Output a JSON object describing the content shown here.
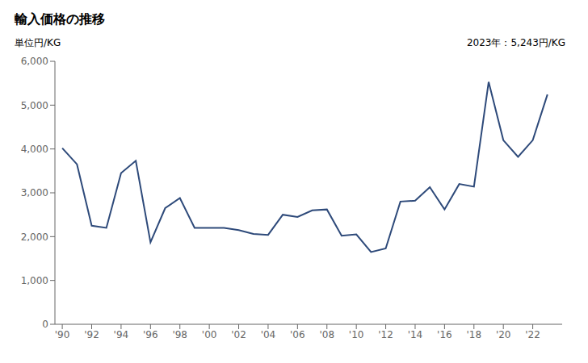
{
  "chart_data": {
    "type": "line",
    "title": "輸入価格の推移",
    "y_label": "単位円/KG",
    "annotation": "2023年：5,243円/KG",
    "x": [
      1990,
      1991,
      1992,
      1993,
      1994,
      1995,
      1996,
      1997,
      1998,
      1999,
      2000,
      2001,
      2002,
      2003,
      2004,
      2005,
      2006,
      2007,
      2008,
      2009,
      2010,
      2011,
      2012,
      2013,
      2014,
      2015,
      2016,
      2017,
      2018,
      2019,
      2020,
      2021,
      2022,
      2023
    ],
    "values": [
      4020,
      3650,
      2250,
      2200,
      3450,
      3730,
      1870,
      2650,
      2880,
      2200,
      2200,
      2200,
      2150,
      2060,
      2040,
      2500,
      2450,
      2600,
      2620,
      2020,
      2050,
      1650,
      1730,
      2800,
      2820,
      3130,
      2620,
      3200,
      3140,
      5530,
      4200,
      3820,
      4200,
      5243
    ],
    "color": "#2e4a7a",
    "xlim": [
      1989.5,
      2024.0
    ],
    "xticks": [
      {
        "value": 1990,
        "label": "'90"
      },
      {
        "value": 1992,
        "label": "'92"
      },
      {
        "value": 1994,
        "label": "'94"
      },
      {
        "value": 1996,
        "label": "'96"
      },
      {
        "value": 1998,
        "label": "'98"
      },
      {
        "value": 2000,
        "label": "'00"
      },
      {
        "value": 2002,
        "label": "'02"
      },
      {
        "value": 2004,
        "label": "'04"
      },
      {
        "value": 2006,
        "label": "'06"
      },
      {
        "value": 2008,
        "label": "'08"
      },
      {
        "value": 2010,
        "label": "'10"
      },
      {
        "value": 2012,
        "label": "'12"
      },
      {
        "value": 2014,
        "label": "'14"
      },
      {
        "value": 2016,
        "label": "'16"
      },
      {
        "value": 2018,
        "label": "'18"
      },
      {
        "value": 2020,
        "label": "'20"
      },
      {
        "value": 2022,
        "label": "'22"
      }
    ],
    "ylim": [
      0,
      6000
    ],
    "yticks": [
      0,
      {
        "value": 1000,
        "label": "1,000"
      },
      {
        "value": 2000,
        "label": "2,000"
      },
      {
        "value": 3000,
        "label": "3,000"
      },
      {
        "value": 4000,
        "label": "4,000"
      },
      {
        "value": 5000,
        "label": "5,000"
      },
      {
        "value": 6000,
        "label": "6,000"
      }
    ],
    "grid": false
  }
}
